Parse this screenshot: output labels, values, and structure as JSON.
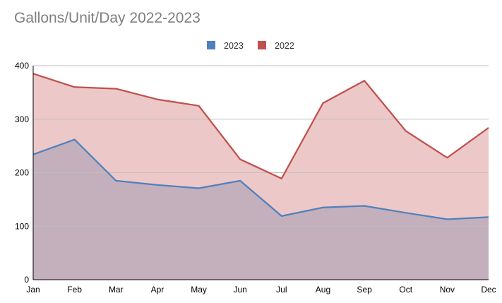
{
  "chart_data": {
    "type": "area",
    "title": "Gallons/Unit/Day 2022-2023",
    "xlabel": "",
    "ylabel": "",
    "categories": [
      "Jan",
      "Feb",
      "Mar",
      "Apr",
      "May",
      "Jun",
      "Jul",
      "Aug",
      "Sep",
      "Oct",
      "Nov",
      "Dec"
    ],
    "ylim": [
      0,
      400
    ],
    "yticks": [
      0,
      100,
      200,
      300,
      400
    ],
    "grid": true,
    "legend": "top-center",
    "series": [
      {
        "name": "2023",
        "color": "#4f81bd",
        "fill": "#c4afbd",
        "values": [
          234,
          262,
          185,
          177,
          171,
          185,
          119,
          135,
          138,
          125,
          113,
          117
        ]
      },
      {
        "name": "2022",
        "color": "#c0504d",
        "fill": "#edc8c8",
        "values": [
          385,
          360,
          357,
          337,
          325,
          225,
          189,
          330,
          372,
          278,
          228,
          284
        ]
      }
    ]
  }
}
